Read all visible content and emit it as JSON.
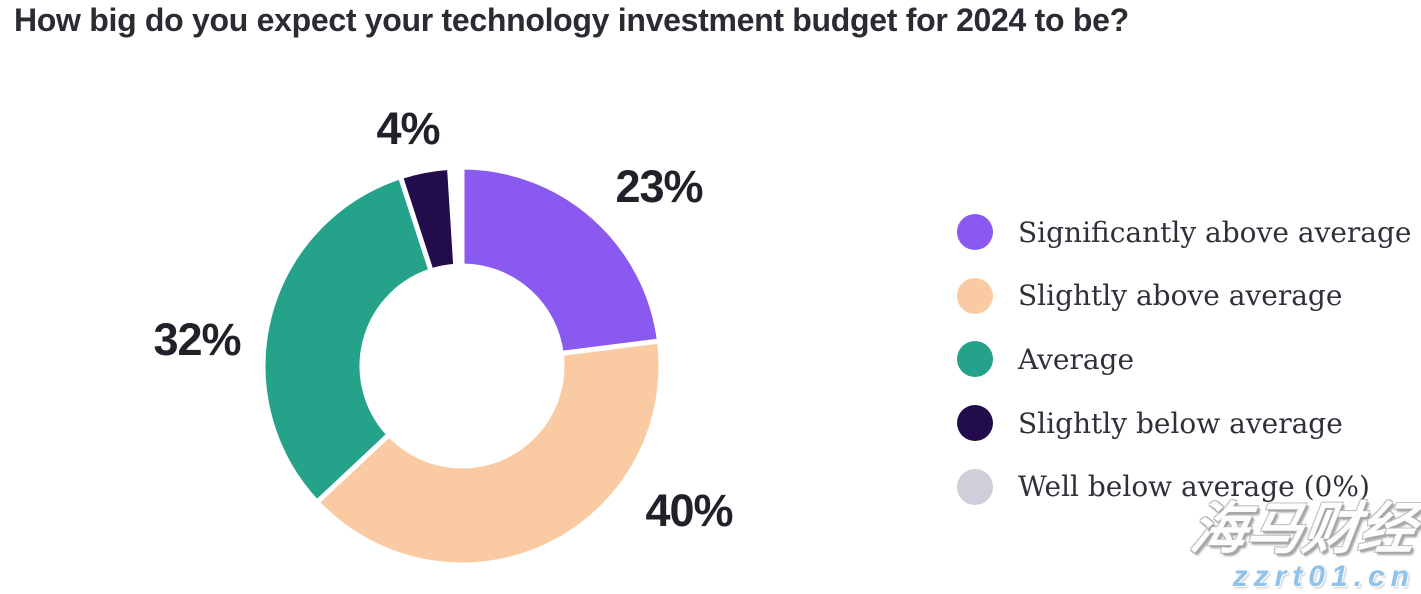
{
  "title": "How big do you expect your technology investment budget for 2024 to be?",
  "chart_data": {
    "type": "pie",
    "subtype": "donut",
    "title": "How big do you expect your technology investment budget for 2024 to be?",
    "start_angle_deg_from_north": 0,
    "direction": "clockwise",
    "legend_position": "right",
    "slices": [
      {
        "label": "Significantly above average",
        "value": 23,
        "display": "23%",
        "color": "#8a5af0"
      },
      {
        "label": "Slightly above average",
        "value": 40,
        "display": "40%",
        "color": "#facba2"
      },
      {
        "label": "Average",
        "value": 32,
        "display": "32%",
        "color": "#24a28a"
      },
      {
        "label": "Slightly below average",
        "value": 4,
        "display": "4%",
        "color": "#220c4b"
      },
      {
        "label": "Well below average (0%)",
        "value": 0,
        "display": "0%",
        "color": "#cfcedb"
      }
    ]
  },
  "watermark": {
    "brand": "海马财经",
    "url": "zzrt01.cn"
  }
}
